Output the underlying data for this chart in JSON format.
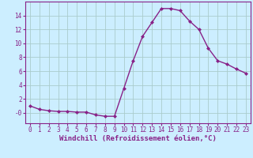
{
  "hours": [
    0,
    1,
    2,
    3,
    4,
    5,
    6,
    7,
    8,
    9,
    10,
    11,
    12,
    13,
    14,
    15,
    16,
    17,
    18,
    19,
    20,
    21,
    22,
    23
  ],
  "values": [
    1.0,
    0.5,
    0.3,
    0.2,
    0.2,
    0.1,
    0.1,
    -0.3,
    -0.5,
    -0.5,
    3.5,
    7.5,
    11.0,
    13.0,
    15.0,
    15.0,
    14.7,
    13.2,
    12.0,
    9.3,
    7.5,
    7.0,
    6.3,
    5.7
  ],
  "line_color": "#882288",
  "marker": "D",
  "marker_size": 2.0,
  "line_width": 1.0,
  "bg_color": "#cceeff",
  "grid_color": "#aacccc",
  "xlabel": "Windchill (Refroidissement éolien,°C)",
  "xlabel_color": "#882288",
  "xlabel_fontsize": 6.5,
  "tick_color": "#882288",
  "tick_fontsize": 5.5,
  "ylim": [
    -1.5,
    16.0
  ],
  "xlim": [
    -0.5,
    23.5
  ],
  "yticks": [
    0,
    2,
    4,
    6,
    8,
    10,
    12,
    14
  ],
  "ytick_labels": [
    "-0",
    "2",
    "4",
    "6",
    "8",
    "10",
    "12",
    "14"
  ],
  "spine_color": "#882288"
}
